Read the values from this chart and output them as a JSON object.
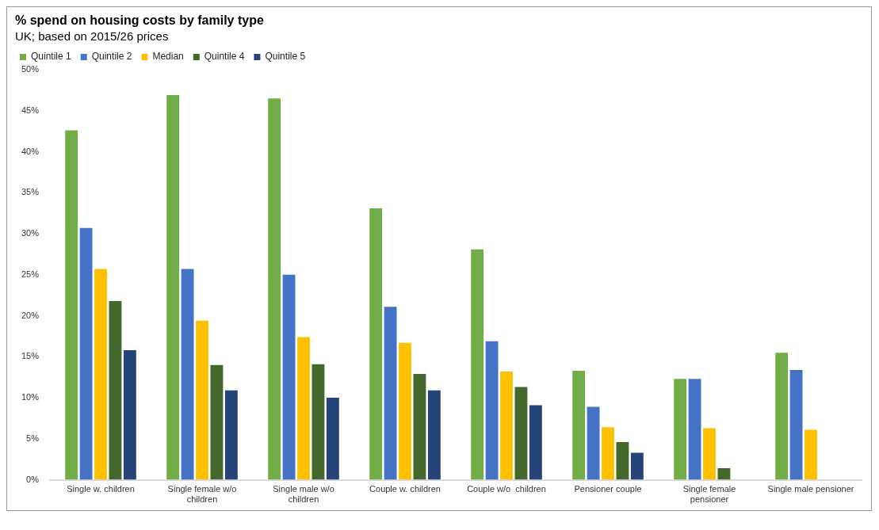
{
  "chart_data": {
    "type": "bar",
    "title": "% spend on housing costs by family type",
    "subtitle": "UK; based on 2015/26 prices",
    "categories": [
      "Single w. children",
      "Single female w/o children",
      "Single male w/o children",
      "Couple w. children",
      "Couple w/o  children",
      "Pensioner couple",
      "Single female pensioner",
      "Single male pensioner"
    ],
    "series": [
      {
        "name": "Quintile 1",
        "color": "#70ad47",
        "values": [
          42.6,
          46.9,
          46.5,
          33.1,
          28.1,
          13.3,
          12.3,
          15.5
        ]
      },
      {
        "name": "Quintile 2",
        "color": "#4472c4",
        "values": [
          30.7,
          25.7,
          25.0,
          21.1,
          16.9,
          8.9,
          12.3,
          13.4
        ]
      },
      {
        "name": "Median",
        "color": "#ffc000",
        "values": [
          25.7,
          19.4,
          17.4,
          16.7,
          13.2,
          6.4,
          6.3,
          6.1
        ]
      },
      {
        "name": "Quintile 4",
        "color": "#43682b",
        "values": [
          21.8,
          14.0,
          14.1,
          12.9,
          11.3,
          4.6,
          1.4,
          null
        ]
      },
      {
        "name": "Quintile 5",
        "color": "#264478",
        "values": [
          15.8,
          10.9,
          10.0,
          10.9,
          9.1,
          3.3,
          null,
          null
        ]
      }
    ],
    "ylim": [
      0,
      50
    ],
    "yticks": [
      {
        "value": 0,
        "label": "0%"
      },
      {
        "value": 5,
        "label": "5%"
      },
      {
        "value": 10,
        "label": "10%"
      },
      {
        "value": 15,
        "label": "15%"
      },
      {
        "value": 20,
        "label": "20%"
      },
      {
        "value": 25,
        "label": "25%"
      },
      {
        "value": 30,
        "label": "30%"
      },
      {
        "value": 35,
        "label": "35%"
      },
      {
        "value": 40,
        "label": "40%"
      },
      {
        "value": 45,
        "label": "45%"
      },
      {
        "value": 50,
        "label": "50%"
      }
    ],
    "grid": false,
    "legend": "top left"
  }
}
